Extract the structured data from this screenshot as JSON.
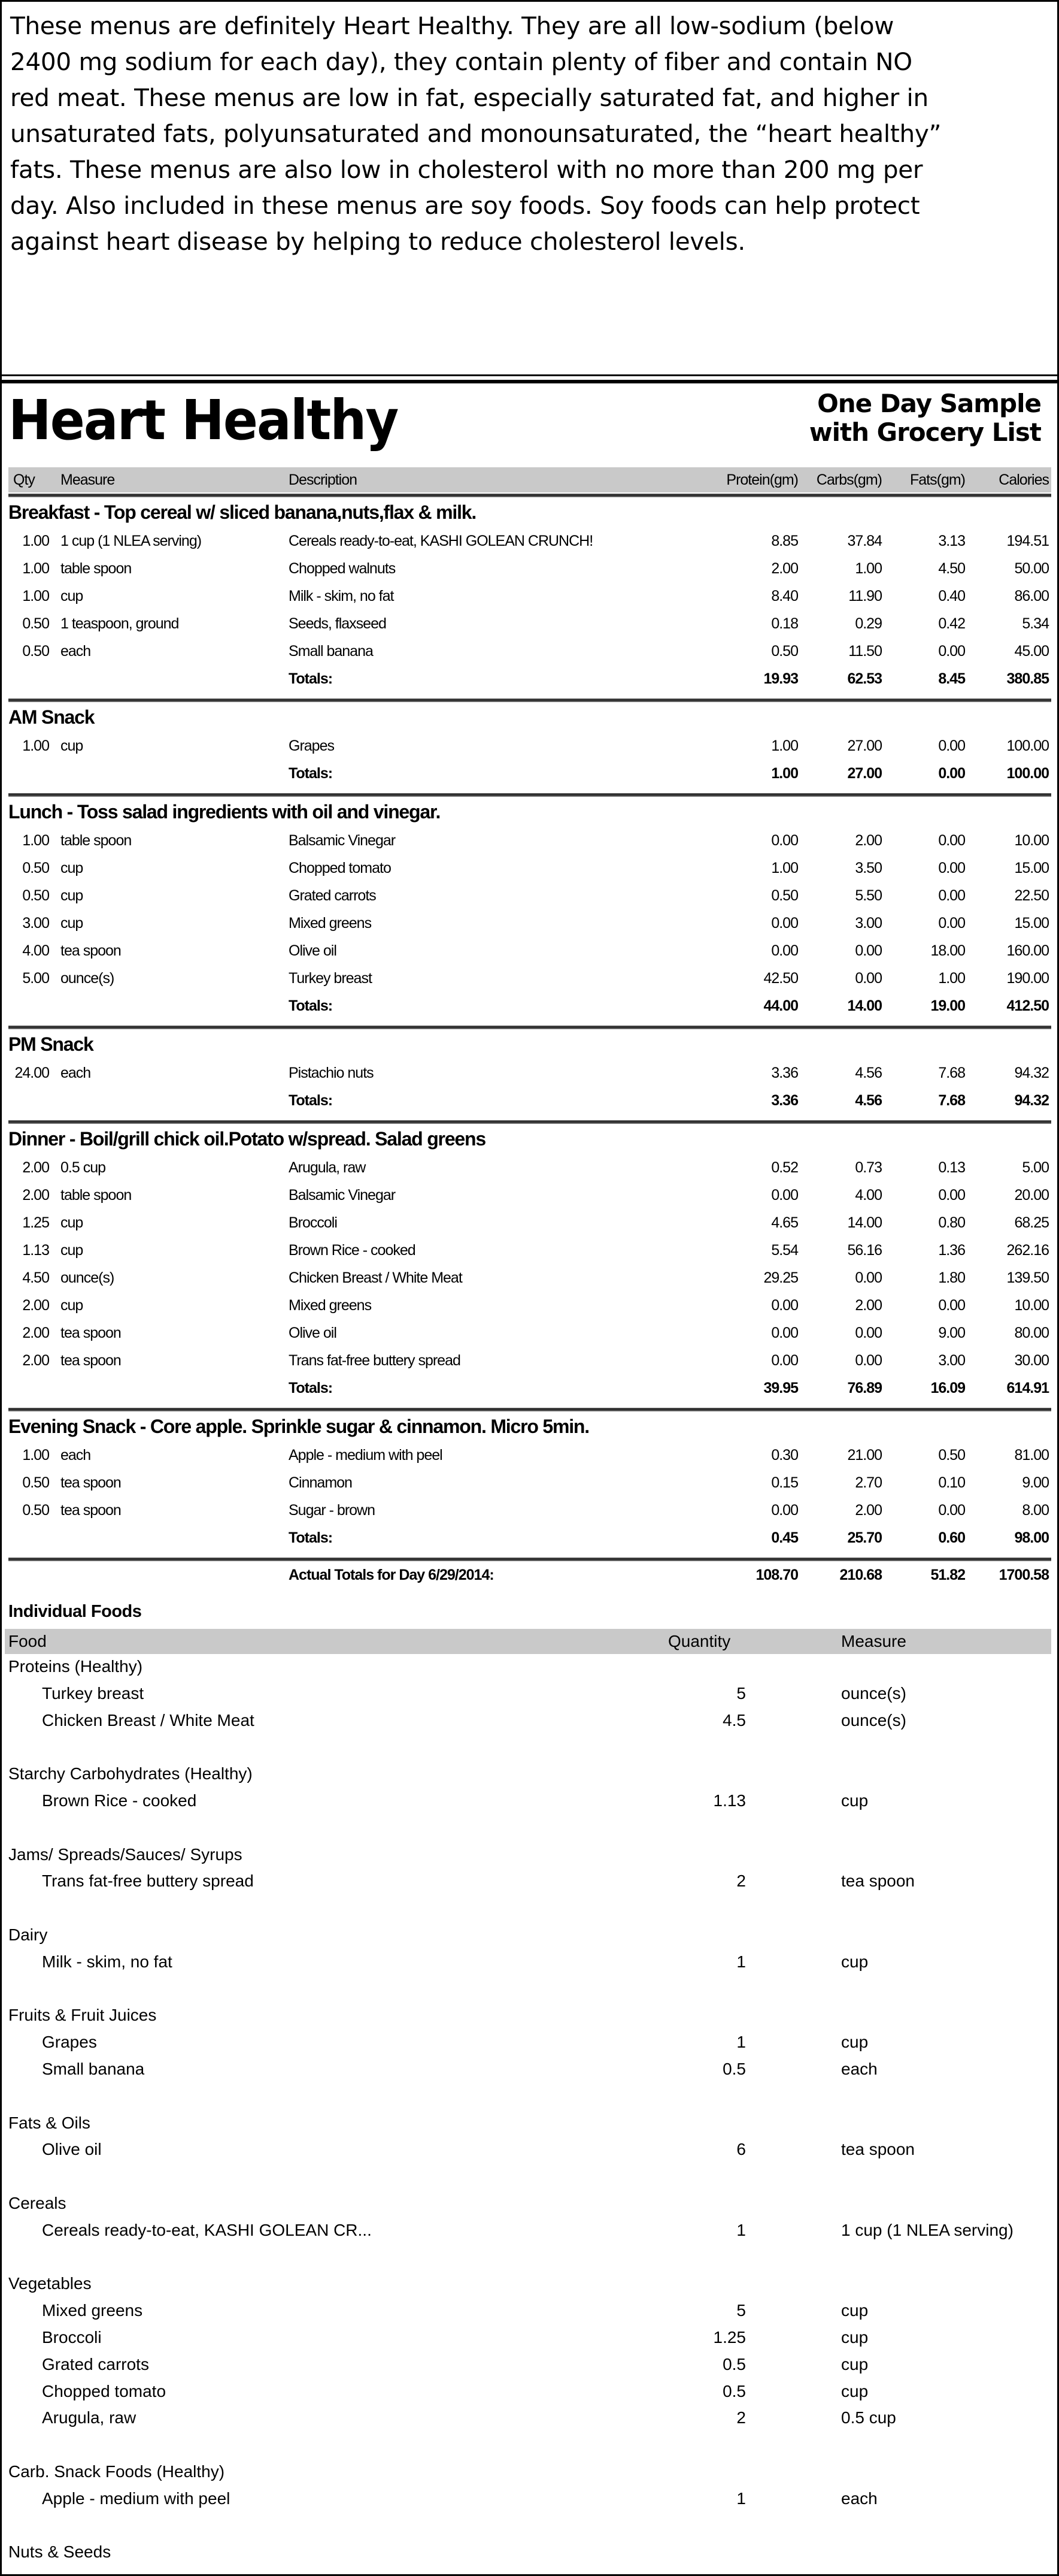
{
  "intro": {
    "lines": [
      "These menus are definitely Heart Healthy.  They are all low-sodium (below",
      "2400 mg sodium for each day), they contain plenty of fiber and contain NO",
      "red meat.  These menus are low in fat, especially saturated fat, and higher in",
      "unsaturated fats, polyunsaturated and monounsaturated, the “heart healthy”",
      "fats.  These menus are also low in cholesterol with no more than 200 mg per",
      "day.  Also included in these menus are soy foods.  Soy foods can help protect",
      "against heart disease by helping to reduce cholesterol levels."
    ]
  },
  "title": "Heart Healthy",
  "subtitle": [
    "One Day Sample",
    "with Grocery List"
  ],
  "columns": {
    "qty": "Qty",
    "measure": "Measure",
    "description": "Description",
    "protein": "Protein(gm)",
    "carbs": "Carbs(gm)",
    "fats": "Fats(gm)",
    "calories": "Calories"
  },
  "meals": [
    {
      "heading": "Breakfast - Top cereal w/ sliced banana,nuts,flax & milk.",
      "rows": [
        [
          "1.00",
          "1 cup (1 NLEA serving)",
          "Cereals ready-to-eat, KASHI GOLEAN CRUNCH!",
          "8.85",
          "37.84",
          "3.13",
          "194.51"
        ],
        [
          "1.00",
          "table spoon",
          "Chopped walnuts",
          "2.00",
          "1.00",
          "4.50",
          "50.00"
        ],
        [
          "1.00",
          "cup",
          "Milk - skim, no fat",
          "8.40",
          "11.90",
          "0.40",
          "86.00"
        ],
        [
          "0.50",
          "1 teaspoon, ground",
          "Seeds, flaxseed",
          "0.18",
          "0.29",
          "0.42",
          "5.34"
        ],
        [
          "0.50",
          "each",
          "Small banana",
          "0.50",
          "11.50",
          "0.00",
          "45.00"
        ]
      ],
      "totals": [
        "Totals:",
        "19.93",
        "62.53",
        "8.45",
        "380.85"
      ]
    },
    {
      "heading": "AM Snack",
      "rows": [
        [
          "1.00",
          "cup",
          "Grapes",
          "1.00",
          "27.00",
          "0.00",
          "100.00"
        ]
      ],
      "totals": [
        "Totals:",
        "1.00",
        "27.00",
        "0.00",
        "100.00"
      ]
    },
    {
      "heading": "Lunch - Toss salad ingredients with oil and vinegar.",
      "rows": [
        [
          "1.00",
          "table spoon",
          "Balsamic Vinegar",
          "0.00",
          "2.00",
          "0.00",
          "10.00"
        ],
        [
          "0.50",
          "cup",
          "Chopped tomato",
          "1.00",
          "3.50",
          "0.00",
          "15.00"
        ],
        [
          "0.50",
          "cup",
          "Grated carrots",
          "0.50",
          "5.50",
          "0.00",
          "22.50"
        ],
        [
          "3.00",
          "cup",
          "Mixed greens",
          "0.00",
          "3.00",
          "0.00",
          "15.00"
        ],
        [
          "4.00",
          "tea spoon",
          "Olive oil",
          "0.00",
          "0.00",
          "18.00",
          "160.00"
        ],
        [
          "5.00",
          "ounce(s)",
          "Turkey breast",
          "42.50",
          "0.00",
          "1.00",
          "190.00"
        ]
      ],
      "totals": [
        "Totals:",
        "44.00",
        "14.00",
        "19.00",
        "412.50"
      ]
    },
    {
      "heading": "PM Snack",
      "rows": [
        [
          "24.00",
          "each",
          "Pistachio nuts",
          "3.36",
          "4.56",
          "7.68",
          "94.32"
        ]
      ],
      "totals": [
        "Totals:",
        "3.36",
        "4.56",
        "7.68",
        "94.32"
      ]
    },
    {
      "heading": "Dinner - Boil/grill chick oil.Potato w/spread. Salad greens",
      "rows": [
        [
          "2.00",
          "0.5 cup",
          "Arugula, raw",
          "0.52",
          "0.73",
          "0.13",
          "5.00"
        ],
        [
          "2.00",
          "table spoon",
          "Balsamic Vinegar",
          "0.00",
          "4.00",
          "0.00",
          "20.00"
        ],
        [
          "1.25",
          "cup",
          "Broccoli",
          "4.65",
          "14.00",
          "0.80",
          "68.25"
        ],
        [
          "1.13",
          "cup",
          "Brown Rice - cooked",
          "5.54",
          "56.16",
          "1.36",
          "262.16"
        ],
        [
          "4.50",
          "ounce(s)",
          "Chicken Breast / White Meat",
          "29.25",
          "0.00",
          "1.80",
          "139.50"
        ],
        [
          "2.00",
          "cup",
          "Mixed greens",
          "0.00",
          "2.00",
          "0.00",
          "10.00"
        ],
        [
          "2.00",
          "tea spoon",
          "Olive oil",
          "0.00",
          "0.00",
          "9.00",
          "80.00"
        ],
        [
          "2.00",
          "tea spoon",
          "Trans fat-free buttery spread",
          "0.00",
          "0.00",
          "3.00",
          "30.00"
        ]
      ],
      "totals": [
        "Totals:",
        "39.95",
        "76.89",
        "16.09",
        "614.91"
      ]
    },
    {
      "heading": "Evening Snack - Core apple. Sprinkle sugar & cinnamon. Micro 5min.",
      "rows": [
        [
          "1.00",
          "each",
          "Apple - medium with peel",
          "0.30",
          "21.00",
          "0.50",
          "81.00"
        ],
        [
          "0.50",
          "tea spoon",
          "Cinnamon",
          "0.15",
          "2.70",
          "0.10",
          "9.00"
        ],
        [
          "0.50",
          "tea spoon",
          "Sugar - brown",
          "0.00",
          "2.00",
          "0.00",
          "8.00"
        ]
      ],
      "totals": [
        "Totals:",
        "0.45",
        "25.70",
        "0.60",
        "98.00"
      ]
    }
  ],
  "day_totals": [
    "Actual Totals for Day 6/29/2014:",
    "108.70",
    "210.68",
    "51.82",
    "1700.58"
  ],
  "grocery": {
    "title": "Individual Foods",
    "headers": {
      "food": "Food",
      "quantity": "Quantity",
      "measure": "Measure"
    },
    "categories": [
      {
        "name": "Proteins (Healthy)",
        "items": [
          [
            "Turkey breast",
            "5",
            "ounce(s)"
          ],
          [
            "Chicken Breast / White Meat",
            "4.5",
            "ounce(s)"
          ]
        ]
      },
      {
        "name": "Starchy Carbohydrates (Healthy)",
        "items": [
          [
            "Brown Rice - cooked",
            "1.13",
            "cup"
          ]
        ]
      },
      {
        "name": "Jams/ Spreads/Sauces/ Syrups",
        "items": [
          [
            "Trans fat-free buttery spread",
            "2",
            "tea spoon"
          ]
        ]
      },
      {
        "name": "Dairy",
        "items": [
          [
            "Milk - skim, no fat",
            "1",
            "cup"
          ]
        ]
      },
      {
        "name": "Fruits & Fruit Juices",
        "items": [
          [
            "Grapes",
            "1",
            "cup"
          ],
          [
            "Small banana",
            "0.5",
            "each"
          ]
        ]
      },
      {
        "name": "Fats & Oils",
        "items": [
          [
            "Olive oil",
            "6",
            "tea spoon"
          ]
        ]
      },
      {
        "name": "Cereals",
        "items": [
          [
            "Cereals ready-to-eat, KASHI GOLEAN CR...",
            "1",
            "1 cup (1 NLEA serving)"
          ]
        ]
      },
      {
        "name": "Vegetables",
        "items": [
          [
            "Mixed greens",
            "5",
            "cup"
          ],
          [
            "Broccoli",
            "1.25",
            "cup"
          ],
          [
            "Grated carrots",
            "0.5",
            "cup"
          ],
          [
            "Chopped tomato",
            "0.5",
            "cup"
          ],
          [
            "Arugula, raw",
            "2",
            "0.5 cup"
          ]
        ]
      },
      {
        "name": "Carb. Snack Foods (Healthy)",
        "items": [
          [
            "Apple - medium with peel",
            "1",
            "each"
          ]
        ]
      },
      {
        "name": "Nuts & Seeds",
        "items": []
      }
    ]
  }
}
